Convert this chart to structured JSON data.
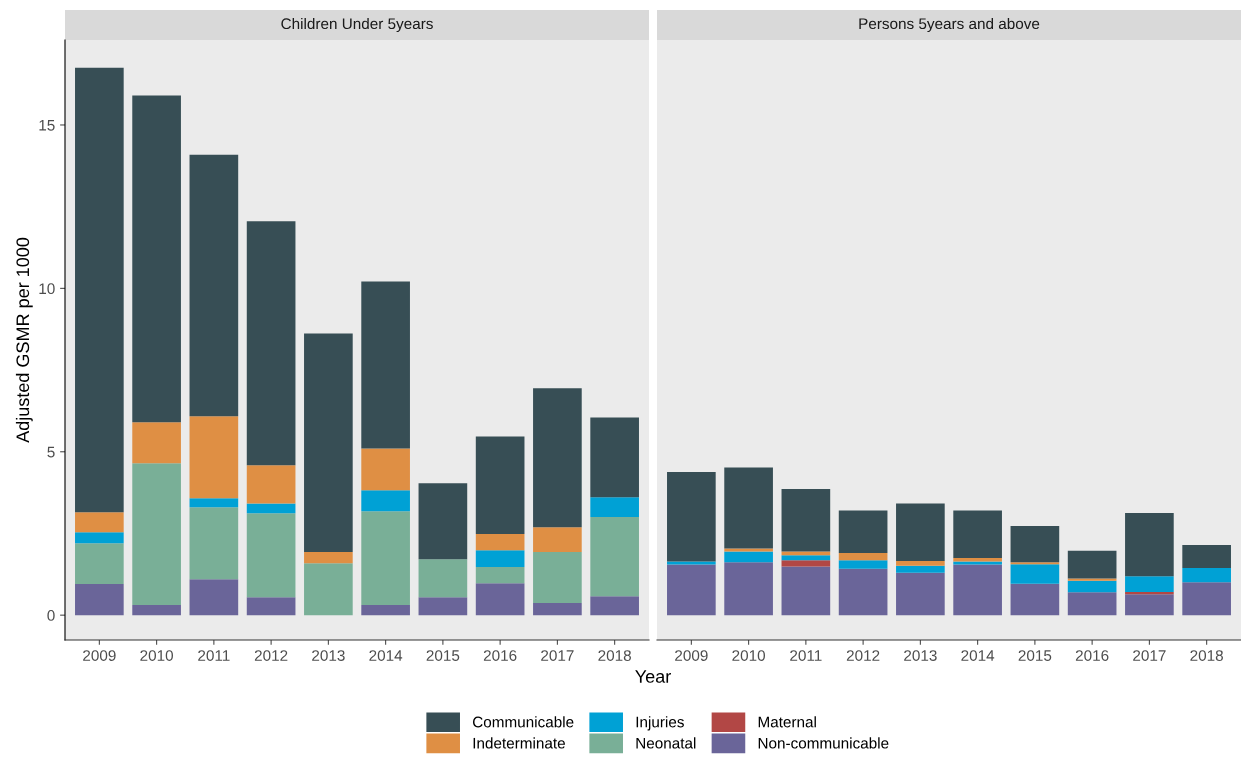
{
  "chart_data": [
    {
      "type": "bar",
      "title": "Children Under 5years",
      "xlabel": "Year",
      "ylabel": "Adjusted GSMR per 1000",
      "stacked": true,
      "grid": false,
      "legend": "bottom",
      "categories": [
        "2009",
        "2010",
        "2011",
        "2012",
        "2013",
        "2014",
        "2015",
        "2016",
        "2017",
        "2018"
      ],
      "ylim": [
        -0.76,
        17.6
      ],
      "yticks": [
        0,
        5,
        10,
        15
      ],
      "series": [
        {
          "name": "Non-communicable",
          "color": "#6a6599",
          "values": [
            0.95,
            0.31,
            1.1,
            0.55,
            0,
            0.31,
            0.55,
            0.98,
            0.37,
            0.58
          ]
        },
        {
          "name": "Maternal",
          "color": "#b24745",
          "values": [
            0,
            0,
            0,
            0,
            0,
            0,
            0,
            0,
            0,
            0
          ]
        },
        {
          "name": "Neonatal",
          "color": "#79af97",
          "values": [
            1.25,
            4.34,
            2.2,
            2.57,
            1.59,
            2.87,
            1.16,
            0.49,
            1.56,
            2.42
          ]
        },
        {
          "name": "Injuries",
          "color": "#00a1d5",
          "values": [
            0.34,
            0,
            0.28,
            0.3,
            0,
            0.64,
            0,
            0.52,
            0,
            0.61
          ]
        },
        {
          "name": "Indeterminate",
          "color": "#df8f44",
          "values": [
            0.61,
            1.25,
            2.51,
            1.17,
            0.34,
            1.28,
            0,
            0.49,
            0.76,
            0
          ]
        },
        {
          "name": "Communicable",
          "color": "#374e55",
          "values": [
            13.6,
            10.0,
            8.0,
            7.46,
            6.69,
            5.11,
            2.33,
            2.99,
            4.25,
            2.44
          ]
        }
      ]
    },
    {
      "type": "bar",
      "title": "Persons 5years and above",
      "stacked": true,
      "grid": false,
      "tick_labels": "x",
      "categories": [
        "2009",
        "2010",
        "2011",
        "2012",
        "2013",
        "2014",
        "2015",
        "2016",
        "2017",
        "2018"
      ],
      "ylim": [
        -0.76,
        17.6
      ],
      "yticks": [
        0,
        5,
        10,
        15
      ],
      "series": [
        {
          "color": "#6a6599",
          "values": [
            1.55,
            1.62,
            1.49,
            1.42,
            1.3,
            1.55,
            0.96,
            0.7,
            0.64,
            1.01
          ]
        },
        {
          "color": "#b24745",
          "values": [
            0,
            0,
            0.19,
            0,
            0,
            0,
            0,
            0,
            0.07,
            0
          ]
        },
        {
          "color": "#79af97",
          "values": [
            0,
            0,
            0,
            0,
            0,
            0,
            0,
            0,
            0,
            0
          ]
        },
        {
          "color": "#00a1d5",
          "values": [
            0.09,
            0.33,
            0.15,
            0.26,
            0.21,
            0.09,
            0.6,
            0.35,
            0.48,
            0.43
          ]
        },
        {
          "color": "#df8f44",
          "values": [
            0,
            0.09,
            0.12,
            0.22,
            0.15,
            0.11,
            0.06,
            0.07,
            0,
            0
          ]
        },
        {
          "color": "#374e55",
          "values": [
            2.74,
            2.48,
            1.91,
            1.3,
            1.76,
            1.45,
            1.11,
            0.85,
            1.94,
            0.71
          ]
        }
      ]
    }
  ]
}
